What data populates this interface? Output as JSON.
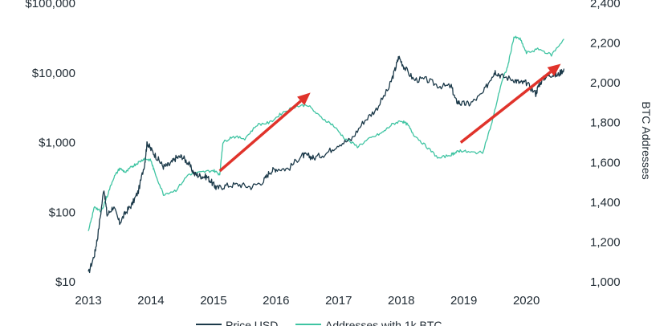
{
  "chart_data": {
    "type": "line",
    "title": "",
    "xlabel": "",
    "ylabel_left": "",
    "ylabel_right": "BTC Addresses",
    "y_left_scale": "log",
    "y_left_range": [
      10,
      100000
    ],
    "y_left_ticks": [
      "$10",
      "$100",
      "$1,000",
      "$10,000",
      "$100,000"
    ],
    "y_right_range": [
      1000,
      2400
    ],
    "y_right_ticks": [
      "1,000",
      "1,200",
      "1,400",
      "1,600",
      "1,800",
      "2,000",
      "2,200",
      "2,400"
    ],
    "x_range": [
      2013,
      2020.8
    ],
    "x_ticks": [
      "2013",
      "2014",
      "2015",
      "2016",
      "2017",
      "2018",
      "2019",
      "2020"
    ],
    "grid": false,
    "legend_position": "bottom",
    "colors": {
      "price": "#1c3a4a",
      "addresses": "#3fc4a2",
      "arrows": "#e0332b"
    },
    "series": [
      {
        "name": "Price USD",
        "axis": "left",
        "x": [
          2013.0,
          2013.1,
          2013.15,
          2013.25,
          2013.3,
          2013.4,
          2013.5,
          2013.6,
          2013.7,
          2013.8,
          2013.9,
          2013.94,
          2014.0,
          2014.1,
          2014.2,
          2014.3,
          2014.4,
          2014.5,
          2014.6,
          2014.7,
          2014.8,
          2014.9,
          2015.0,
          2015.05,
          2015.2,
          2015.4,
          2015.6,
          2015.8,
          2015.9,
          2016.0,
          2016.2,
          2016.4,
          2016.5,
          2016.6,
          2016.8,
          2017.0,
          2017.2,
          2017.4,
          2017.6,
          2017.8,
          2017.9,
          2017.96,
          2018.05,
          2018.2,
          2018.4,
          2018.6,
          2018.8,
          2018.87,
          2018.96,
          2019.1,
          2019.3,
          2019.45,
          2019.5,
          2019.6,
          2019.8,
          2019.9,
          2020.0,
          2020.15,
          2020.2,
          2020.3,
          2020.4,
          2020.5,
          2020.6
        ],
        "values": [
          13,
          25,
          45,
          220,
          90,
          120,
          70,
          100,
          130,
          200,
          500,
          1000,
          800,
          600,
          450,
          480,
          600,
          630,
          500,
          350,
          330,
          320,
          250,
          220,
          240,
          250,
          230,
          280,
          380,
          420,
          420,
          650,
          650,
          600,
          700,
          950,
          1100,
          2000,
          3000,
          6000,
          11000,
          17000,
          12000,
          8000,
          8000,
          6500,
          6400,
          4000,
          3600,
          3600,
          5000,
          9000,
          10500,
          9000,
          8000,
          7200,
          7200,
          5000,
          6800,
          8800,
          9500,
          9200,
          11500
        ]
      },
      {
        "name": "Addresses with 1k BTC",
        "axis": "right",
        "x": [
          2013.0,
          2013.1,
          2013.2,
          2013.3,
          2013.4,
          2013.5,
          2013.6,
          2013.7,
          2013.8,
          2013.9,
          2014.0,
          2014.05,
          2014.2,
          2014.4,
          2014.6,
          2014.8,
          2015.0,
          2015.1,
          2015.15,
          2015.3,
          2015.5,
          2015.7,
          2015.9,
          2016.1,
          2016.3,
          2016.5,
          2016.7,
          2016.9,
          2017.1,
          2017.3,
          2017.5,
          2017.7,
          2017.85,
          2018.0,
          2018.1,
          2018.2,
          2018.4,
          2018.6,
          2018.8,
          2018.87,
          2018.95,
          2019.1,
          2019.3,
          2019.45,
          2019.6,
          2019.7,
          2019.8,
          2019.9,
          2020.0,
          2020.2,
          2020.4,
          2020.6
        ],
        "values": [
          1250,
          1380,
          1350,
          1430,
          1520,
          1570,
          1550,
          1580,
          1600,
          1620,
          1610,
          1560,
          1440,
          1460,
          1540,
          1550,
          1560,
          1540,
          1700,
          1730,
          1720,
          1790,
          1800,
          1850,
          1880,
          1890,
          1830,
          1790,
          1720,
          1680,
          1720,
          1750,
          1790,
          1810,
          1790,
          1740,
          1680,
          1620,
          1640,
          1650,
          1660,
          1650,
          1650,
          1800,
          2000,
          2080,
          2230,
          2220,
          2150,
          2170,
          2140,
          2220
        ]
      }
    ],
    "annotations": [
      {
        "type": "arrow",
        "from_x": 2015.1,
        "from_y_left": 390,
        "to_x": 2016.55,
        "to_y_left": 5200
      },
      {
        "type": "arrow",
        "from_x": 2018.95,
        "from_y_left": 1000,
        "to_x": 2020.55,
        "to_y_left": 13500
      }
    ]
  }
}
